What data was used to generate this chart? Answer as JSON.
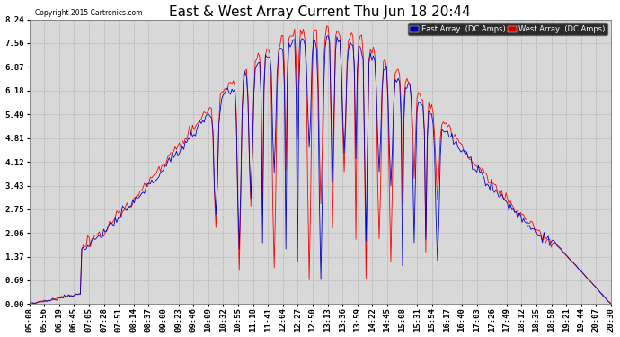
{
  "title": "East & West Array Current Thu Jun 18 20:44",
  "copyright": "Copyright 2015 Cartronics.com",
  "legend_east": "East Array  (DC Amps)",
  "legend_west": "West Array  (DC Amps)",
  "east_color": "#0000cc",
  "west_color": "#ff0000",
  "legend_east_bg": "#000099",
  "legend_west_bg": "#cc0000",
  "ylim": [
    0.0,
    8.24
  ],
  "yticks": [
    0.0,
    0.69,
    1.37,
    2.06,
    2.75,
    3.43,
    4.12,
    4.81,
    5.49,
    6.18,
    6.87,
    7.56,
    8.24
  ],
  "background_color": "#ffffff",
  "plot_bg_color": "#d8d8d8",
  "grid_color": "#aaaaaa",
  "title_fontsize": 11,
  "tick_fontsize": 6.5,
  "xlabel_rotation": 90,
  "x_tick_labels": [
    "05:08",
    "05:56",
    "06:19",
    "06:45",
    "07:05",
    "07:28",
    "07:51",
    "08:14",
    "08:37",
    "09:00",
    "09:23",
    "09:46",
    "10:09",
    "10:32",
    "10:55",
    "11:18",
    "11:41",
    "12:04",
    "12:27",
    "12:50",
    "13:13",
    "13:36",
    "13:59",
    "14:22",
    "14:45",
    "15:08",
    "15:31",
    "15:54",
    "16:17",
    "16:40",
    "17:03",
    "17:26",
    "17:49",
    "18:12",
    "18:35",
    "18:58",
    "19:21",
    "19:44",
    "20:07",
    "20:30"
  ],
  "num_points": 400
}
